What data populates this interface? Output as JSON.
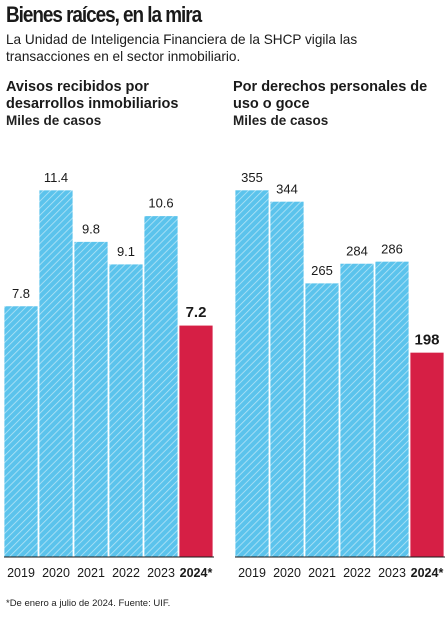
{
  "header": {
    "title": "Bienes raíces, en la mira",
    "subtitle": "La Unidad de Inteligencia Financiera de la SHCP vigila las transacciones en el sector inmobiliario."
  },
  "footnote": "*De enero a julio de 2024. Fuente: UIF.",
  "colors": {
    "bar": "#5bc3ec",
    "highlight": "#d61f45",
    "hatch": "#ffffff"
  },
  "chart_data": [
    {
      "type": "bar",
      "title": "Avisos recibidos por desarrollos inmobiliarios",
      "unit": "Miles de casos",
      "categories": [
        "2019",
        "2020",
        "2021",
        "2022",
        "2023",
        "2024*"
      ],
      "values": [
        7.8,
        11.4,
        9.8,
        9.1,
        10.6,
        7.2
      ],
      "value_labels": [
        "7.8",
        "11.4",
        "9.8",
        "9.1",
        "10.6",
        "7.2"
      ],
      "highlight_index": 5,
      "ylim": [
        0,
        13.2
      ]
    },
    {
      "type": "bar",
      "title": "Por derechos personales de uso o goce",
      "unit": "Miles de casos",
      "categories": [
        "2019",
        "2020",
        "2021",
        "2022",
        "2023",
        "2024*"
      ],
      "values": [
        355,
        344,
        265,
        284,
        286,
        198
      ],
      "value_labels": [
        "355",
        "344",
        "265",
        "284",
        "286",
        "198"
      ],
      "highlight_index": 5,
      "ylim": [
        0,
        411
      ]
    }
  ]
}
